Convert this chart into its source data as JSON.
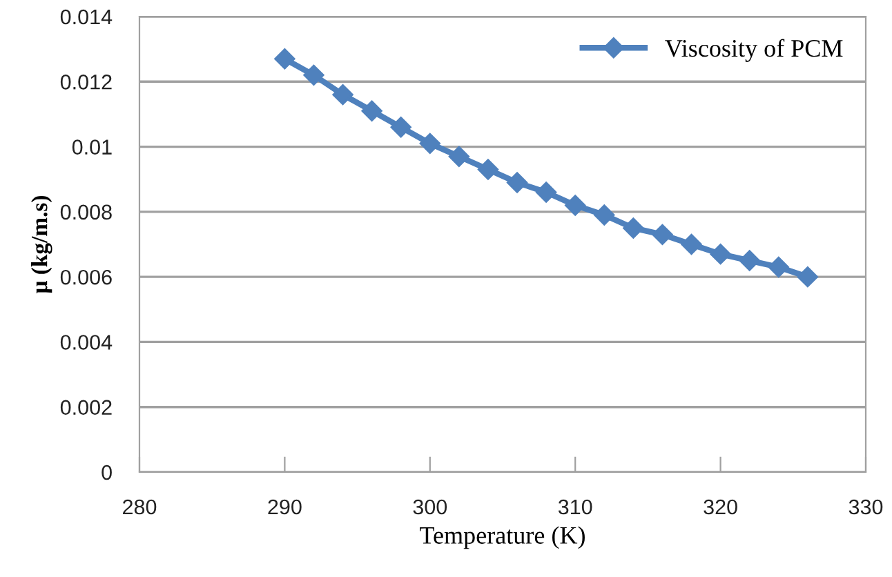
{
  "chart_data": {
    "type": "line",
    "xlabel": "Temperature (K)",
    "ylabel": "μ (kg/m.s)",
    "x": [
      290,
      292,
      294,
      296,
      298,
      300,
      302,
      304,
      306,
      308,
      310,
      312,
      314,
      316,
      318,
      320,
      322,
      324,
      326
    ],
    "series": [
      {
        "name": "Viscosity of PCM",
        "color": "#4f81bd",
        "values": [
          0.0127,
          0.0122,
          0.0116,
          0.0111,
          0.0106,
          0.0101,
          0.0097,
          0.0093,
          0.0089,
          0.0086,
          0.0082,
          0.0079,
          0.0075,
          0.0073,
          0.007,
          0.0067,
          0.0065,
          0.0063,
          0.006
        ]
      }
    ],
    "xlim": [
      280,
      330
    ],
    "xticks": [
      280,
      290,
      300,
      310,
      320,
      330
    ],
    "ylim": [
      0,
      0.014
    ],
    "yticks": [
      0,
      0.002,
      0.004,
      0.006,
      0.008,
      0.01,
      0.012,
      0.014
    ],
    "grid": "y",
    "legend": "top right",
    "marker": "diamond",
    "line_style": "solid"
  }
}
